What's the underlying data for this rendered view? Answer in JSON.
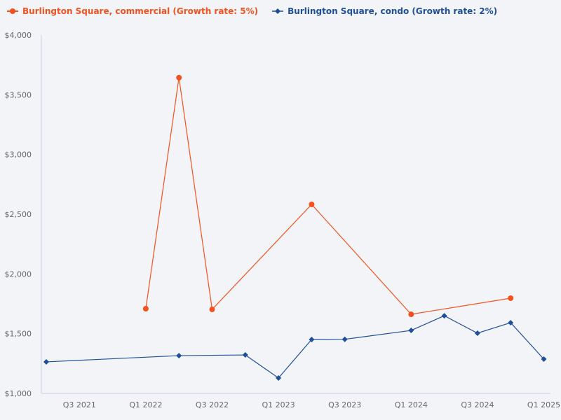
{
  "chart_data": {
    "type": "line",
    "title": "",
    "xlabel": "",
    "ylabel": "",
    "ylim": [
      1000,
      4000
    ],
    "yticks": [
      1000,
      1500,
      2000,
      2500,
      3000,
      3500,
      4000
    ],
    "ytick_labels": [
      "$1,000",
      "$1,500",
      "$2,000",
      "$2,500",
      "$3,000",
      "$3,500",
      "$4,000"
    ],
    "xticks": [
      "Q3 2021",
      "Q1 2022",
      "Q3 2022",
      "Q1 2023",
      "Q3 2023",
      "Q1 2024",
      "Q3 2024",
      "Q1 2025"
    ],
    "x": [
      "Q2 2021",
      "Q3 2021",
      "Q4 2021",
      "Q1 2022",
      "Q2 2022",
      "Q3 2022",
      "Q4 2022",
      "Q1 2023",
      "Q2 2023",
      "Q3 2023",
      "Q4 2023",
      "Q1 2024",
      "Q2 2024",
      "Q3 2024",
      "Q4 2024",
      "Q1 2025"
    ],
    "grid": false,
    "legend_position": "top-left",
    "series": [
      {
        "name": "Burlington Square, commercial (Growth rate: 5%)",
        "color": "#f4511e",
        "marker": "circle",
        "points": [
          {
            "x": "Q1 2022",
            "y": 1709
          },
          {
            "x": "Q2 2022",
            "y": 3643
          },
          {
            "x": "Q3 2022",
            "y": 1703
          },
          {
            "x": "Q2 2023",
            "y": 2582
          },
          {
            "x": "Q1 2024",
            "y": 1662
          },
          {
            "x": "Q4 2024",
            "y": 1797
          }
        ]
      },
      {
        "name": "Burlington Square, condo (Growth rate: 2%)",
        "color": "#1f4e9c",
        "marker": "diamond",
        "points": [
          {
            "x": "Q2 2021",
            "y": 1264
          },
          {
            "x": "Q2 2022",
            "y": 1316
          },
          {
            "x": "Q4 2022",
            "y": 1322
          },
          {
            "x": "Q1 2023",
            "y": 1129
          },
          {
            "x": "Q2 2023",
            "y": 1451
          },
          {
            "x": "Q3 2023",
            "y": 1453
          },
          {
            "x": "Q1 2024",
            "y": 1527
          },
          {
            "x": "Q2 2024",
            "y": 1650
          },
          {
            "x": "Q3 2024",
            "y": 1504
          },
          {
            "x": "Q4 2024",
            "y": 1592
          },
          {
            "x": "Q1 2025",
            "y": 1287
          }
        ]
      }
    ]
  },
  "legend": {
    "items": [
      {
        "label": "Burlington Square, commercial (Growth rate: 5%)",
        "color": "#f4511e"
      },
      {
        "label": "Burlington Square, condo (Growth rate: 2%)",
        "color": "#1f4e9c"
      }
    ]
  },
  "colors": {
    "background": "#f2f4f7",
    "axis": "#c5d0e6",
    "tick_text": "#666666"
  }
}
